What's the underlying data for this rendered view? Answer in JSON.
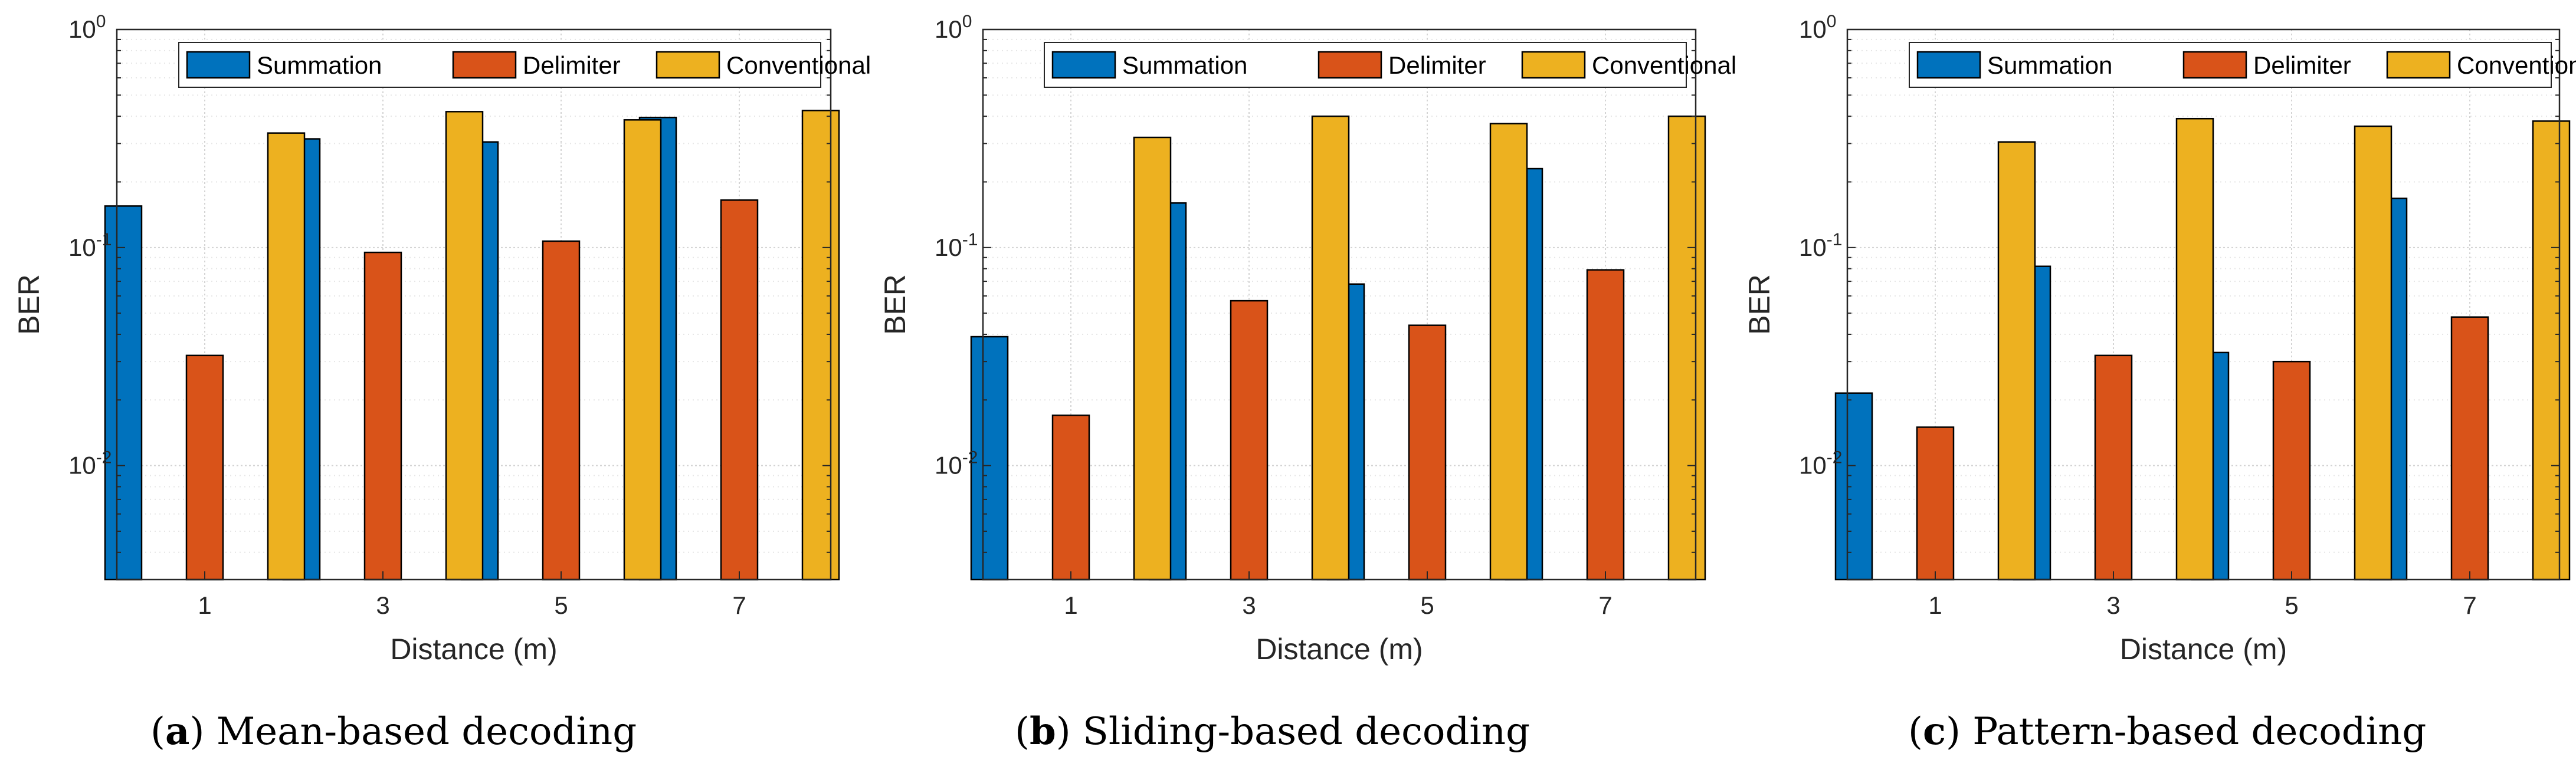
{
  "colors": {
    "Summation": "#0072bd",
    "Delimiter": "#d95319",
    "Conventional": "#edb120"
  },
  "chart_data": [
    {
      "type": "bar",
      "y_scale": "log",
      "ylim": [
        0.003,
        1
      ],
      "grid": true,
      "legend": "top-right",
      "xlabel": "Distance (m)",
      "ylabel": "BER",
      "categories": [
        "1",
        "3",
        "5",
        "7"
      ],
      "y_ticks": [
        {
          "value": 0.01,
          "base": "10",
          "exp": "-2"
        },
        {
          "value": 0.1,
          "base": "10",
          "exp": "-1"
        },
        {
          "value": 1,
          "base": "10",
          "exp": "0"
        }
      ],
      "series": [
        {
          "name": "Summation",
          "values": [
            0.155,
            0.315,
            0.305,
            0.395
          ]
        },
        {
          "name": "Delimiter",
          "values": [
            0.032,
            0.095,
            0.107,
            0.165
          ]
        },
        {
          "name": "Conventional",
          "values": [
            0.335,
            0.42,
            0.385,
            0.425
          ]
        }
      ],
      "caption_tag": "(a)",
      "caption_text": "Mean-based decoding"
    },
    {
      "type": "bar",
      "y_scale": "log",
      "ylim": [
        0.003,
        1
      ],
      "grid": true,
      "legend": "top-right",
      "xlabel": "Distance (m)",
      "ylabel": "BER",
      "categories": [
        "1",
        "3",
        "5",
        "7"
      ],
      "y_ticks": [
        {
          "value": 0.01,
          "base": "10",
          "exp": "-2"
        },
        {
          "value": 0.1,
          "base": "10",
          "exp": "-1"
        },
        {
          "value": 1,
          "base": "10",
          "exp": "0"
        }
      ],
      "series": [
        {
          "name": "Summation",
          "values": [
            0.039,
            0.16,
            0.068,
            0.23
          ]
        },
        {
          "name": "Delimiter",
          "values": [
            0.017,
            0.057,
            0.044,
            0.079
          ]
        },
        {
          "name": "Conventional",
          "values": [
            0.32,
            0.4,
            0.37,
            0.4
          ]
        }
      ],
      "caption_tag": "(b)",
      "caption_text": "Sliding-based decoding"
    },
    {
      "type": "bar",
      "y_scale": "log",
      "ylim": [
        0.003,
        1
      ],
      "grid": true,
      "legend": "top-right",
      "xlabel": "Distance (m)",
      "ylabel": "BER",
      "categories": [
        "1",
        "3",
        "5",
        "7"
      ],
      "y_ticks": [
        {
          "value": 0.01,
          "base": "10",
          "exp": "-2"
        },
        {
          "value": 0.1,
          "base": "10",
          "exp": "-1"
        },
        {
          "value": 1,
          "base": "10",
          "exp": "0"
        }
      ],
      "series": [
        {
          "name": "Summation",
          "values": [
            0.0215,
            0.082,
            0.033,
            0.168
          ]
        },
        {
          "name": "Delimiter",
          "values": [
            0.015,
            0.032,
            0.03,
            0.048
          ]
        },
        {
          "name": "Conventional",
          "values": [
            0.305,
            0.39,
            0.36,
            0.38
          ]
        }
      ],
      "caption_tag": "(c)",
      "caption_text": "Pattern-based decoding"
    }
  ]
}
